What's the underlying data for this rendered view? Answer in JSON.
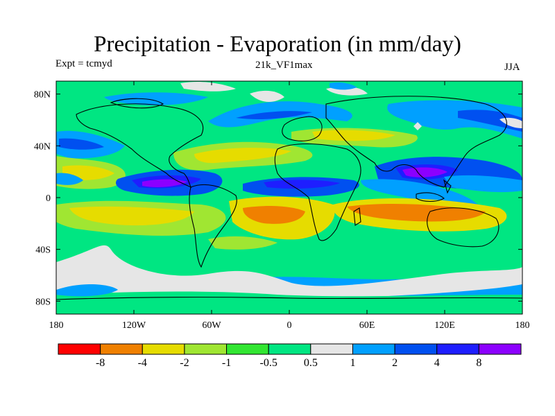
{
  "title": "Precipitation - Evaporation (in mm/day)",
  "experiment_label": "Expt = tcmyd",
  "run_label": "21k_VF1max",
  "season_label": "JJA",
  "axes": {
    "lat_ticks": [
      "80N",
      "40N",
      "0",
      "40S",
      "80S"
    ],
    "lon_ticks": [
      "180",
      "120W",
      "60W",
      "0",
      "60E",
      "120E",
      "180"
    ]
  },
  "colorbar": {
    "colors": [
      "#ff0000",
      "#f08000",
      "#e6dc00",
      "#a0e632",
      "#32e632",
      "#00e682",
      "#e6e6e6",
      "#00a0ff",
      "#0050f0",
      "#1e1eff",
      "#8c00ff"
    ],
    "labels": [
      "-8",
      "-4",
      "-2",
      "-1",
      "-0.5",
      "0.5",
      "1",
      "2",
      "4",
      "8"
    ]
  },
  "chart_data": {
    "type": "heatmap",
    "title": "Precipitation - Evaporation (in mm/day)",
    "variable": "P-E",
    "units": "mm/day",
    "season": "JJA",
    "experiment": "tcmyd",
    "run": "21k_VF1max",
    "x_range": [
      -180,
      180
    ],
    "y_range": [
      -90,
      90
    ],
    "contour_levels": [
      -8,
      -4,
      -2,
      -1,
      -0.5,
      0.5,
      1,
      2,
      4,
      8
    ],
    "features": [
      {
        "region": "ITCZ central/eastern Pacific",
        "value_range": "4 to >8"
      },
      {
        "region": "Equatorial Atlantic ITCZ",
        "value_range": "2 to 4"
      },
      {
        "region": "Bay of Bengal / South Asian monsoon",
        "value_range": "4 to >8"
      },
      {
        "region": "Western Pacific warm pool",
        "value_range": "2 to 8"
      },
      {
        "region": "South Atlantic subtropics",
        "value_range": "-4 to -8"
      },
      {
        "region": "South Indian Ocean subtropics",
        "value_range": "-4 to -8"
      },
      {
        "region": "North Atlantic subtropics",
        "value_range": "-1 to -2"
      },
      {
        "region": "North Pacific mid-latitudes",
        "value_range": "1 to 4"
      },
      {
        "region": "Southern Ocean storm track",
        "value_range": "1 to 2"
      }
    ]
  }
}
